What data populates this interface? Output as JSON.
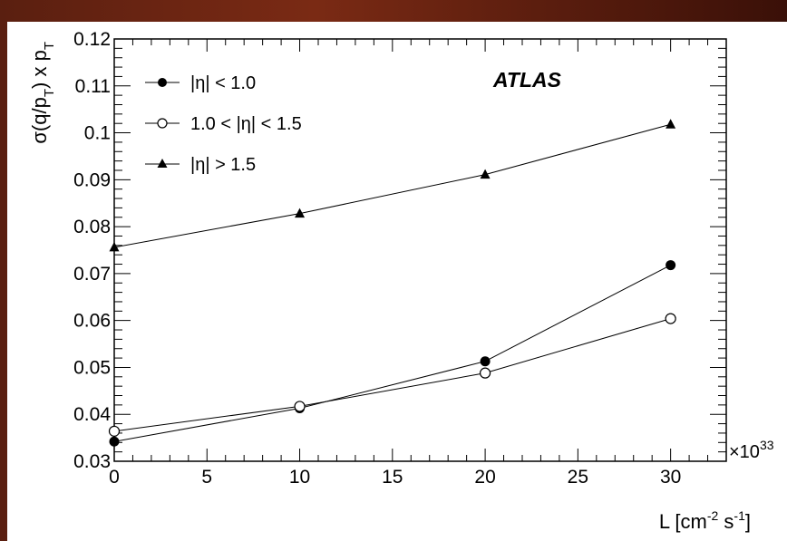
{
  "chart_data": {
    "type": "line",
    "x": [
      0,
      10,
      20,
      30
    ],
    "xlim": [
      0,
      33
    ],
    "ylim": [
      0.03,
      0.12
    ],
    "x_ticks": [
      0,
      5,
      10,
      15,
      20,
      25,
      30
    ],
    "x_tick_labels": [
      "0",
      "5",
      "10",
      "15",
      "20",
      "25",
      "30"
    ],
    "y_ticks": [
      0.03,
      0.04,
      0.05,
      0.06,
      0.07,
      0.08,
      0.09,
      0.1,
      0.11,
      0.12
    ],
    "y_tick_labels": [
      "0.03",
      "0.04",
      "0.05",
      "0.06",
      "0.07",
      "0.08",
      "0.09",
      "0.1",
      "0.11",
      "0.12"
    ],
    "x_multiplier": "×10",
    "x_multiplier_exp": "33",
    "xlabel": "L [cm",
    "xlabel_exp1": "-2",
    "xlabel_mid": " s",
    "xlabel_exp2": "-1",
    "xlabel_end": "]",
    "ylabel": "σ(q/p",
    "ylabel_sub1": "T",
    "ylabel_mid": ") x p",
    "ylabel_sub2": "T",
    "annotation": "ATLAS",
    "grid": false,
    "legend_position": "top-left",
    "series": [
      {
        "name": "|η| < 1.0",
        "marker": "filled-circle",
        "values": [
          0.0342,
          0.0413,
          0.0513,
          0.0718
        ]
      },
      {
        "name": "1.0 < |η| < 1.5",
        "marker": "open-circle",
        "values": [
          0.0364,
          0.0417,
          0.0488,
          0.0604
        ]
      },
      {
        "name": "|η| > 1.5",
        "marker": "filled-triangle",
        "values": [
          0.0756,
          0.0828,
          0.0911,
          0.1018
        ]
      }
    ]
  }
}
